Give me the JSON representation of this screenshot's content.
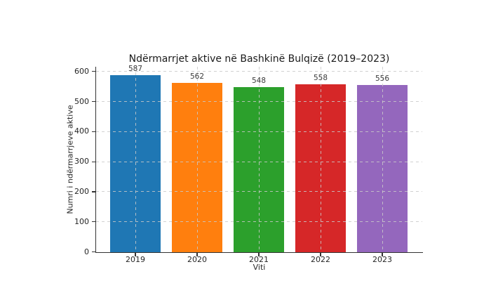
{
  "chart_data": {
    "type": "bar",
    "title": "Ndërmarrjet aktive në Bashkinë Bulqizë (2019–2023)",
    "xlabel": "Viti",
    "ylabel": "Numri i ndërmarrjeve aktive",
    "categories": [
      "2019",
      "2020",
      "2021",
      "2022",
      "2023"
    ],
    "values": [
      587,
      562,
      548,
      558,
      556
    ],
    "value_labels": [
      "587",
      "562",
      "548",
      "558",
      "556"
    ],
    "bar_colors": [
      "#1f77b4",
      "#ff7f0e",
      "#2ca02c",
      "#d62728",
      "#9467bd"
    ],
    "yticks": [
      0,
      100,
      200,
      300,
      400,
      500,
      600
    ],
    "ylim": [
      0,
      616
    ],
    "grid": "dashed, horizontal and vertical, drawn over bars",
    "legend": "none",
    "background": "#ffffff",
    "spine_color": "#333333"
  }
}
